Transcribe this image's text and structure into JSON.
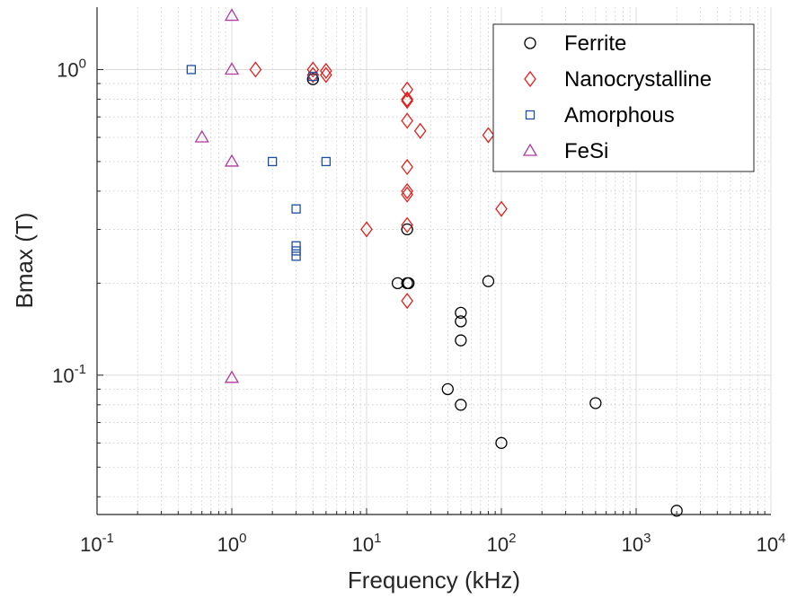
{
  "chart_data": {
    "type": "scatter",
    "xlabel": "Frequency (kHz)",
    "ylabel": "Bmax (T)",
    "xscale": "log",
    "yscale": "log",
    "xlim": [
      0.1,
      10000
    ],
    "ylim": [
      0.035,
      1.6
    ],
    "grid": true,
    "legend_position": "top-right",
    "x_ticks": [
      {
        "base": "10",
        "exp": "-1"
      },
      {
        "base": "10",
        "exp": "0"
      },
      {
        "base": "10",
        "exp": "1"
      },
      {
        "base": "10",
        "exp": "2"
      },
      {
        "base": "10",
        "exp": "3"
      },
      {
        "base": "10",
        "exp": "4"
      }
    ],
    "y_ticks": [
      {
        "base": "10",
        "exp": "-1"
      },
      {
        "base": "10",
        "exp": "0"
      }
    ],
    "series": [
      {
        "name": "Ferrite",
        "marker": "circle",
        "color": "#000000",
        "points": [
          [
            17,
            0.2
          ],
          [
            20,
            0.2
          ],
          [
            20.5,
            0.2
          ],
          [
            20,
            0.3
          ],
          [
            50,
            0.16
          ],
          [
            50,
            0.15
          ],
          [
            50,
            0.13
          ],
          [
            40,
            0.09
          ],
          [
            50,
            0.08
          ],
          [
            80,
            0.203
          ],
          [
            100,
            0.06
          ],
          [
            500,
            0.081
          ],
          [
            2000,
            0.036
          ],
          [
            4,
            0.93
          ]
        ]
      },
      {
        "name": "Nanocrystalline",
        "marker": "diamond",
        "color": "#e0201c",
        "points": [
          [
            1.5,
            1.0
          ],
          [
            4,
            1.0
          ],
          [
            5,
            0.99
          ],
          [
            5,
            0.96
          ],
          [
            4,
            0.96
          ],
          [
            20,
            0.86
          ],
          [
            20,
            0.8
          ],
          [
            20,
            0.79
          ],
          [
            20,
            0.68
          ],
          [
            25,
            0.63
          ],
          [
            80,
            0.61
          ],
          [
            20,
            0.48
          ],
          [
            20,
            0.4
          ],
          [
            20,
            0.39
          ],
          [
            100,
            0.35
          ],
          [
            10,
            0.3
          ],
          [
            20,
            0.31
          ],
          [
            20,
            0.175
          ]
        ]
      },
      {
        "name": "Amorphous",
        "marker": "square",
        "color": "#1f4e9e",
        "points": [
          [
            0.5,
            1.0
          ],
          [
            4,
            0.95
          ],
          [
            2,
            0.5
          ],
          [
            5,
            0.5
          ],
          [
            3,
            0.35
          ],
          [
            3,
            0.265
          ],
          [
            3,
            0.255
          ],
          [
            3,
            0.245
          ]
        ]
      },
      {
        "name": "FeSi",
        "marker": "triangle",
        "color": "#b03aa0",
        "points": [
          [
            1,
            1.5
          ],
          [
            1,
            1.0
          ],
          [
            0.6,
            0.6
          ],
          [
            1,
            0.5
          ],
          [
            1,
            0.098
          ]
        ]
      }
    ]
  }
}
